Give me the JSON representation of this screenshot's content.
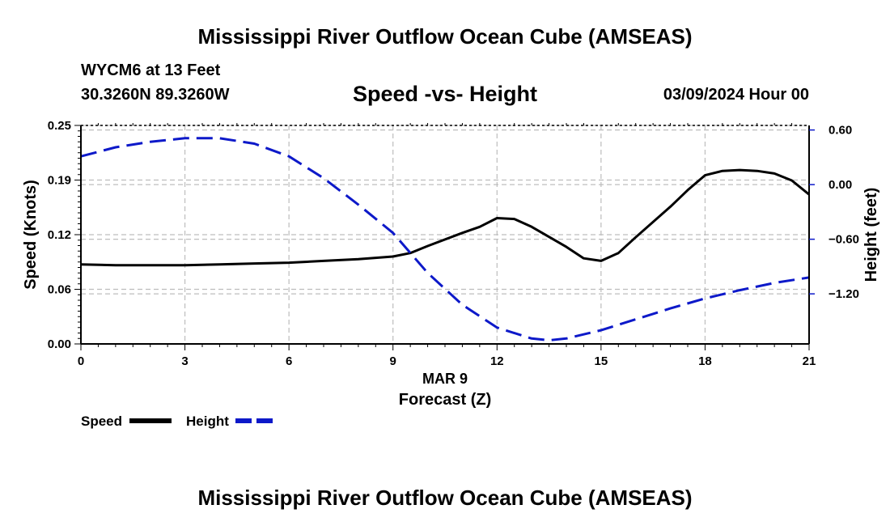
{
  "header": {
    "title": "Mississippi River Outflow Ocean Cube (AMSEAS)",
    "station": "WYCM6 at 13 Feet",
    "coords": "30.3260N  89.3260W",
    "subtitle": "Speed -vs- Height",
    "datetime": "03/09/2024 Hour 00"
  },
  "footer": {
    "title": "Mississippi River Outflow Ocean Cube (AMSEAS)"
  },
  "chart_data": {
    "type": "line",
    "title": "Speed -vs- Height",
    "xlabel": "Forecast (Z)",
    "xdate_label": "MAR 9",
    "ylabel": "Speed (Knots)",
    "y2label": "Height (feet)",
    "xlim": [
      0,
      21
    ],
    "ylim": [
      0,
      0.25
    ],
    "y2lim": [
      -1.75,
      0.65
    ],
    "xticks": [
      0,
      3,
      6,
      9,
      12,
      15,
      18,
      21
    ],
    "xtick_labels": [
      "0",
      "3",
      "6",
      "9",
      "12",
      "15",
      "18",
      "21"
    ],
    "yticks": [
      0,
      0.0625,
      0.125,
      0.1875,
      0.25
    ],
    "ytick_labels": [
      "0.00",
      "0.06",
      "0.12",
      "0.19",
      "0.25"
    ],
    "y2ticks": [
      -1.2,
      -0.6,
      0.0,
      0.6
    ],
    "y2tick_labels": [
      "−1.20",
      "−0.60",
      "0.00",
      "0.60"
    ],
    "grid": true,
    "series": [
      {
        "name": "Speed",
        "axis": "left",
        "color": "#000000",
        "style": "solid",
        "x": [
          0,
          1,
          2,
          3,
          4,
          5,
          6,
          7,
          8,
          9,
          9.5,
          10,
          11,
          11.5,
          12,
          12.5,
          13,
          14,
          14.5,
          15,
          15.5,
          16,
          17,
          17.5,
          18,
          18.5,
          19,
          19.5,
          20,
          20.5,
          21
        ],
        "values": [
          0.091,
          0.09,
          0.09,
          0.09,
          0.091,
          0.092,
          0.093,
          0.095,
          0.097,
          0.1,
          0.104,
          0.112,
          0.127,
          0.134,
          0.144,
          0.143,
          0.134,
          0.111,
          0.098,
          0.095,
          0.104,
          0.122,
          0.157,
          0.176,
          0.193,
          0.198,
          0.199,
          0.198,
          0.195,
          0.187,
          0.171
        ]
      },
      {
        "name": "Height",
        "axis": "right",
        "color": "#0d19c9",
        "style": "dashed",
        "x": [
          0,
          1,
          2,
          3,
          4,
          5,
          6,
          7,
          8,
          9,
          10,
          11,
          12,
          13,
          13.5,
          14,
          15,
          16,
          17,
          18,
          19,
          20,
          21
        ],
        "values": [
          0.31,
          0.41,
          0.47,
          0.51,
          0.51,
          0.45,
          0.31,
          0.07,
          -0.22,
          -0.53,
          -0.97,
          -1.32,
          -1.57,
          -1.69,
          -1.71,
          -1.69,
          -1.6,
          -1.48,
          -1.36,
          -1.25,
          -1.16,
          -1.08,
          -1.02
        ]
      }
    ],
    "legend": [
      {
        "label": "Speed",
        "color": "#000000",
        "style": "solid"
      },
      {
        "label": "Height",
        "color": "#0d19c9",
        "style": "dashed"
      }
    ]
  }
}
